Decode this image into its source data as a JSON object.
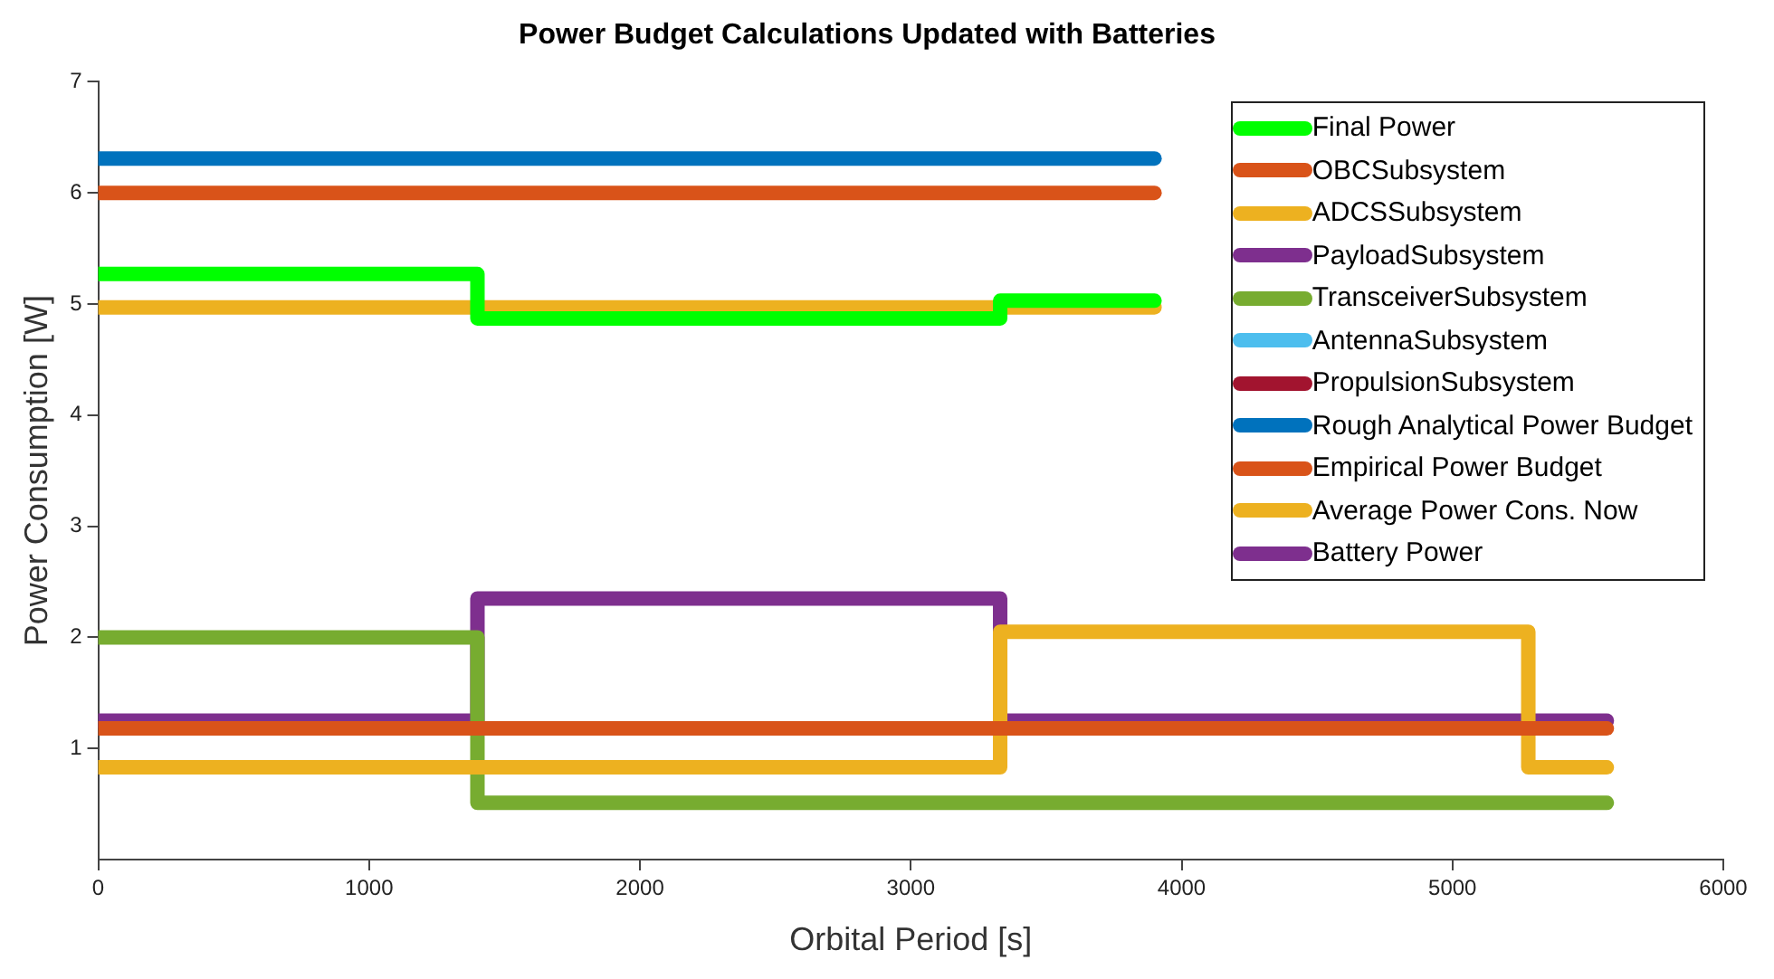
{
  "chart_data": {
    "type": "step",
    "title": "Power Budget Calculations Updated with Batteries",
    "xlabel": "Orbital Period [s]",
    "ylabel": "Power Consumption [W]",
    "xlim": [
      0,
      6000
    ],
    "xticks": [
      0,
      1000,
      2000,
      3000,
      4000,
      5000,
      6000
    ],
    "ylim": [
      0,
      7
    ],
    "yticks": [
      1,
      2,
      3,
      4,
      5,
      6,
      7
    ],
    "grid": false,
    "legend": "top right",
    "marker": "none",
    "line_style": "solid",
    "series": [
      {
        "name": "Final Power",
        "color": "#00ff00",
        "x": [
          0,
          1400,
          3330,
          3900
        ],
        "values": [
          5.27,
          4.87,
          5.03,
          5.03
        ]
      },
      {
        "name": "OBCSubsystem",
        "color": "#d95319",
        "x": [
          0,
          5570
        ],
        "values": [
          1.18,
          1.18
        ]
      },
      {
        "name": "ADCSSubsystem",
        "color": "#edb120",
        "x": [
          0,
          3330,
          5280,
          5570
        ],
        "values": [
          0.83,
          2.05,
          0.83,
          0.83
        ]
      },
      {
        "name": "PayloadSubsystem",
        "color": "#7e2f8e",
        "values": [
          null
        ]
      },
      {
        "name": "TransceiverSubsystem",
        "color": "#77ac30",
        "x": [
          0,
          1400,
          5570
        ],
        "values": [
          2.0,
          0.51,
          0.51
        ]
      },
      {
        "name": "AntennaSubsystem",
        "color": "#4dbeee",
        "values": [
          null
        ]
      },
      {
        "name": "PropulsionSubsystem",
        "color": "#a2142f",
        "values": [
          null
        ]
      },
      {
        "name": "Rough Analytical Power Budget",
        "color": "#0072bd",
        "x": [
          0,
          3900
        ],
        "values": [
          6.31,
          6.31
        ]
      },
      {
        "name": "Empirical Power Budget",
        "color": "#d95319",
        "x": [
          0,
          3900
        ],
        "values": [
          6.0,
          6.0
        ]
      },
      {
        "name": "Average Power Cons. Now",
        "color": "#edb120",
        "x": [
          0,
          3900
        ],
        "values": [
          4.97,
          4.97
        ]
      },
      {
        "name": "Battery Power",
        "color": "#7e2f8e",
        "x": [
          0,
          1400,
          3330,
          5570
        ],
        "values": [
          1.25,
          2.35,
          1.25,
          1.25
        ]
      }
    ]
  }
}
